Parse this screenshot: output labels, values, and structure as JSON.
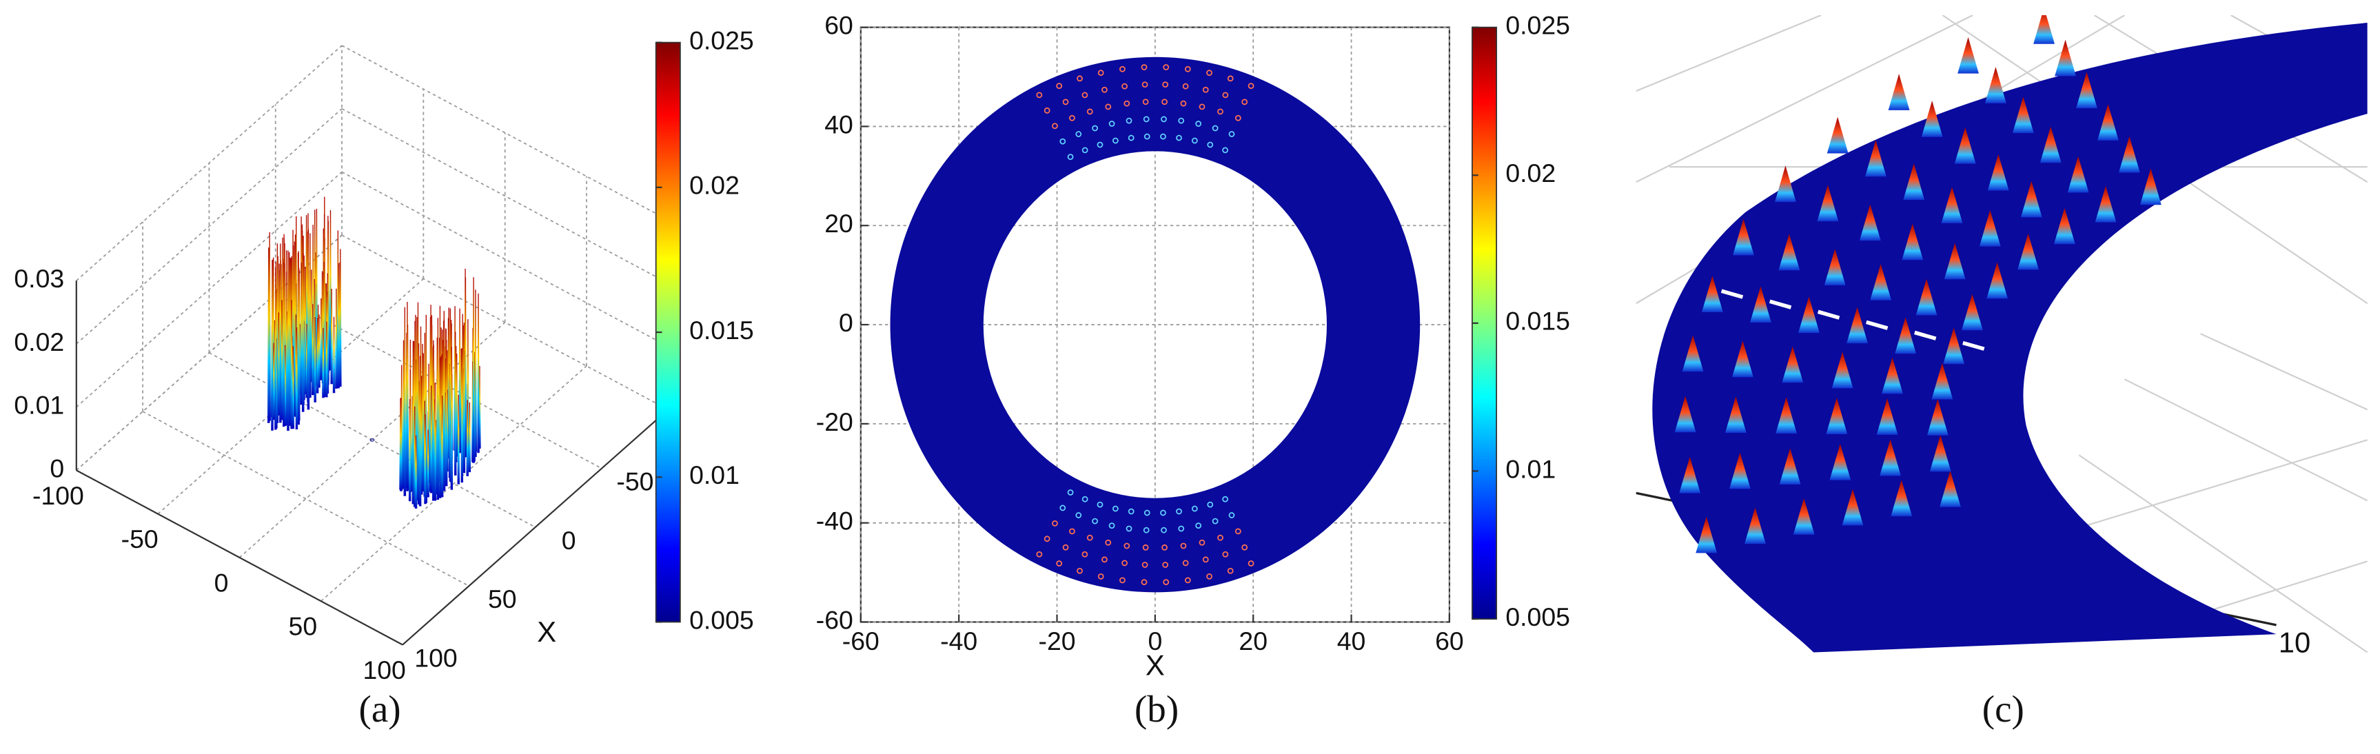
{
  "chart_data": [
    {
      "type": "surface3d",
      "caption": "(a)",
      "xlabel": "X",
      "xlim": [
        -100,
        100
      ],
      "xticks": [
        100,
        50,
        0,
        -50
      ],
      "ylim": [
        -100,
        100
      ],
      "yticks": [
        -100,
        -50,
        0,
        50,
        100
      ],
      "zlim": [
        0,
        0.03
      ],
      "zticks": [
        0,
        0.01,
        0.02,
        0.03
      ],
      "clim": [
        0.005,
        0.025
      ],
      "cticks": [
        0.005,
        0.01,
        0.015,
        0.02,
        0.025
      ],
      "grid": true
    },
    {
      "type": "ringmap",
      "caption": "(b)",
      "xlabel": "X",
      "xlim": [
        -60,
        60
      ],
      "xticks": [
        -60,
        -40,
        -20,
        0,
        20,
        40,
        60
      ],
      "ylim": [
        -60,
        60
      ],
      "yticks": [
        -60,
        -40,
        -20,
        0,
        20,
        40,
        60
      ],
      "clim": [
        0.005,
        0.025
      ],
      "cticks": [
        0.005,
        0.01,
        0.015,
        0.02,
        0.025
      ],
      "grid": true
    },
    {
      "type": "zoom3d",
      "caption": "(c)",
      "xticks": [
        10
      ]
    }
  ]
}
